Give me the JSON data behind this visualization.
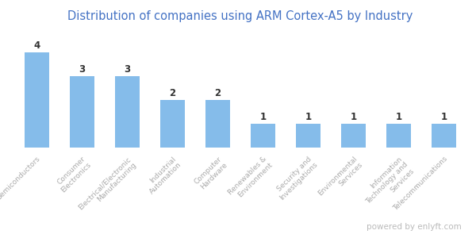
{
  "title": "Distribution of companies using ARM Cortex-A5 by Industry",
  "x_labels": [
    "Semiconductors",
    "Consumer\nElectronics",
    "Electrical/Electronic\nManufacturing",
    "Industrial\nAutomation",
    "Computer\nHardware",
    "Renewables &\nEnvironment",
    "Security and\nInvestigations",
    "Environmental\nServices",
    "Information\nTechnology and\nServices",
    "Telecommunications"
  ],
  "values": [
    4,
    3,
    3,
    2,
    2,
    1,
    1,
    1,
    1,
    1
  ],
  "bar_color": "#85BCEA",
  "title_color": "#4472C4",
  "label_color": "#AAAAAA",
  "value_label_color": "#333333",
  "watermark": "powered by enlyft.com",
  "watermark_color": "#BBBBBB",
  "background_color": "#FFFFFF",
  "ylim": [
    0,
    5
  ],
  "title_fontsize": 10.5,
  "bar_label_fontsize": 6.5,
  "value_fontsize": 8.5
}
